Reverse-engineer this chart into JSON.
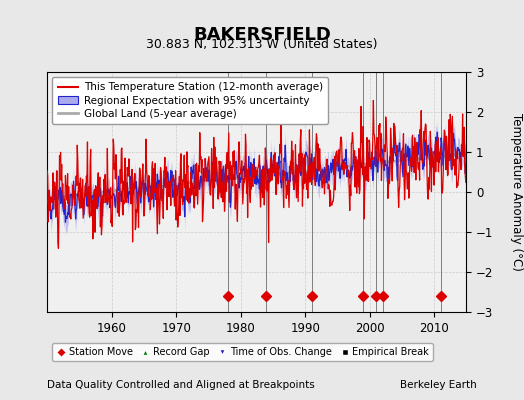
{
  "title": "BAKERSFIELD",
  "subtitle": "30.883 N, 102.313 W (United States)",
  "ylabel": "Temperature Anomaly (°C)",
  "xlabel_note": "Data Quality Controlled and Aligned at Breakpoints",
  "credit": "Berkeley Earth",
  "ylim": [
    -3,
    3
  ],
  "xlim": [
    1950,
    2015
  ],
  "yticks": [
    -3,
    -2,
    -1,
    0,
    1,
    2,
    3
  ],
  "xticks": [
    1960,
    1970,
    1980,
    1990,
    2000,
    2010
  ],
  "station_moves": [
    1978,
    1984,
    1991,
    1999,
    2001,
    2002,
    2011
  ],
  "record_gaps": [],
  "obs_changes": [],
  "empirical_breaks": [],
  "bg_color": "#e8e8e8",
  "plot_bg_color": "#f0f0f0",
  "red_color": "#dd0000",
  "blue_color": "#2222cc",
  "blue_fill_color": "#aaaaee",
  "gray_color": "#aaaaaa",
  "title_fontsize": 13,
  "subtitle_fontsize": 9,
  "tick_fontsize": 8.5,
  "ylabel_fontsize": 8.5,
  "legend_fontsize": 7.5,
  "note_fontsize": 7.5
}
